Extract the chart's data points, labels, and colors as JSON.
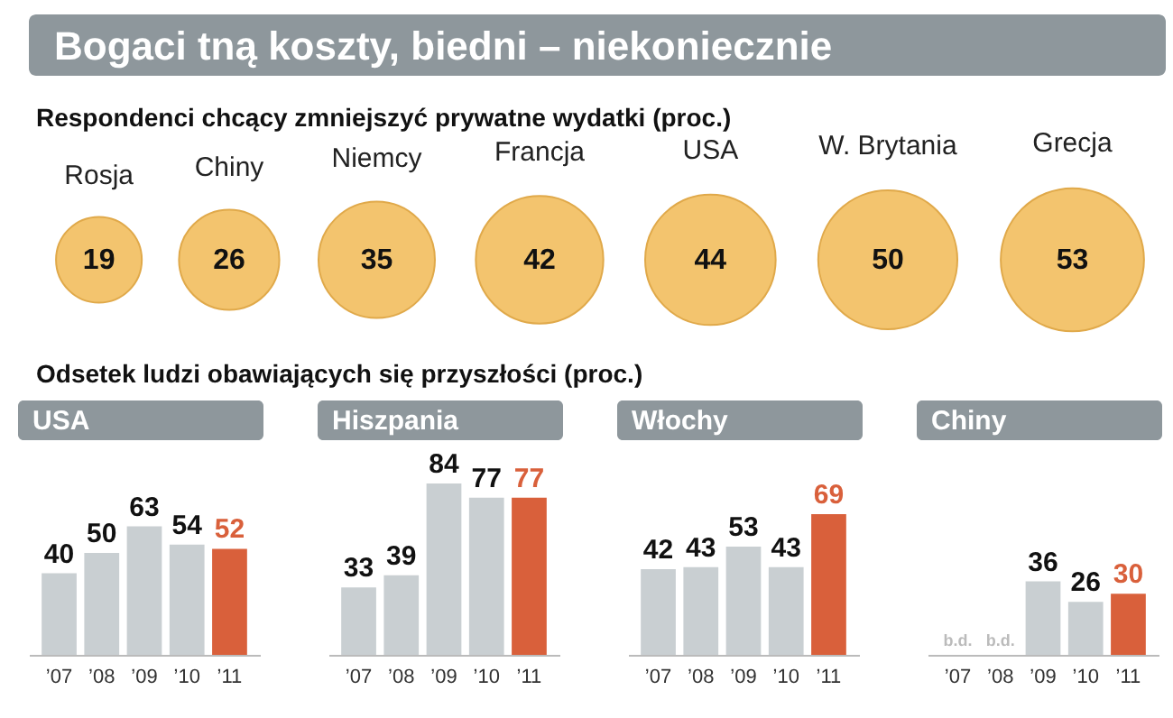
{
  "chart_data": [
    {
      "type": "other",
      "title": "Bogaci tną koszty, biedni – niekoniecznie",
      "subtitle": "Respondenci chcący zmniejszyć prywatne wydatki (proc.)",
      "categories": [
        "Rosja",
        "Chiny",
        "Niemcy",
        "Francja",
        "USA",
        "W. Brytania",
        "Grecja"
      ],
      "values": [
        19,
        26,
        35,
        42,
        44,
        50,
        53
      ],
      "color": "#f3c46e",
      "data_labels": true
    },
    {
      "type": "bar",
      "title": "USA",
      "annotations": [
        "Odsetek ludzi obawiających się przyszłości (proc.)"
      ],
      "categories": [
        "’07",
        "’08",
        "’09",
        "’10",
        "’11"
      ],
      "values": [
        40,
        50,
        63,
        54,
        52
      ],
      "colors": [
        "#c9cfd2",
        "#c9cfd2",
        "#c9cfd2",
        "#c9cfd2",
        "#d9603b"
      ],
      "data_labels": true,
      "tick_labels": "x"
    },
    {
      "type": "bar",
      "title": "Hiszpania",
      "categories": [
        "’07",
        "’08",
        "’09",
        "’10",
        "’11"
      ],
      "values": [
        33,
        39,
        84,
        77,
        77
      ],
      "colors": [
        "#c9cfd2",
        "#c9cfd2",
        "#c9cfd2",
        "#c9cfd2",
        "#d9603b"
      ],
      "data_labels": true,
      "tick_labels": "x"
    },
    {
      "type": "bar",
      "title": "Włochy",
      "categories": [
        "’07",
        "’08",
        "’09",
        "’10",
        "’11"
      ],
      "values": [
        42,
        43,
        53,
        43,
        69
      ],
      "colors": [
        "#c9cfd2",
        "#c9cfd2",
        "#c9cfd2",
        "#c9cfd2",
        "#d9603b"
      ],
      "data_labels": true,
      "tick_labels": "x"
    },
    {
      "type": "bar",
      "title": "Chiny",
      "categories": [
        "’07",
        "’08",
        "’09",
        "’10",
        "’11"
      ],
      "values": [
        null,
        null,
        36,
        26,
        30
      ],
      "colors": [
        "#c9cfd2",
        "#c9cfd2",
        "#c9cfd2",
        "#c9cfd2",
        "#d9603b"
      ],
      "value_labels": [
        "b.d.",
        "b.d.",
        "36",
        "26",
        "30"
      ],
      "tick_labels": "x"
    }
  ]
}
